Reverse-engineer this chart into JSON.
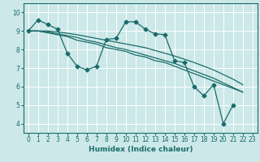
{
  "xlabel": "Humidex (Indice chaleur)",
  "ylabel": "",
  "xlim": [
    -0.5,
    23.5
  ],
  "ylim": [
    3.5,
    10.5
  ],
  "yticks": [
    4,
    5,
    6,
    7,
    8,
    9,
    10
  ],
  "xticks": [
    0,
    1,
    2,
    3,
    4,
    5,
    6,
    7,
    8,
    9,
    10,
    11,
    12,
    13,
    14,
    15,
    16,
    17,
    18,
    19,
    20,
    21,
    22,
    23
  ],
  "bg_color": "#cce8e8",
  "grid_color": "#ffffff",
  "line_color": "#1a6b6b",
  "zigzag": [
    9.0,
    9.6,
    9.35,
    9.1,
    7.8,
    7.1,
    6.9,
    7.1,
    8.55,
    8.6,
    9.5,
    9.5,
    9.1,
    8.85,
    8.8,
    7.4,
    7.3,
    6.0,
    5.5,
    6.1,
    4.0,
    5.0
  ],
  "trend1": [
    9.0,
    9.0,
    8.9,
    8.8,
    8.7,
    8.5,
    8.4,
    8.3,
    8.1,
    8.0,
    7.9,
    7.7,
    7.6,
    7.4,
    7.3,
    7.1,
    6.9,
    6.7,
    6.5,
    6.3,
    6.1,
    5.9,
    5.7
  ],
  "trend2": [
    9.0,
    9.0,
    8.95,
    8.85,
    8.75,
    8.65,
    8.5,
    8.4,
    8.25,
    8.1,
    8.0,
    7.85,
    7.7,
    7.55,
    7.4,
    7.25,
    7.05,
    6.85,
    6.65,
    6.45,
    6.2,
    5.95,
    5.7
  ],
  "trend3": [
    9.0,
    9.0,
    9.0,
    8.95,
    8.88,
    8.8,
    8.7,
    8.6,
    8.5,
    8.4,
    8.3,
    8.2,
    8.1,
    7.95,
    7.8,
    7.65,
    7.48,
    7.3,
    7.1,
    6.9,
    6.65,
    6.4,
    6.1
  ],
  "marker": "D",
  "marker_size": 2.5,
  "linewidth": 0.9
}
